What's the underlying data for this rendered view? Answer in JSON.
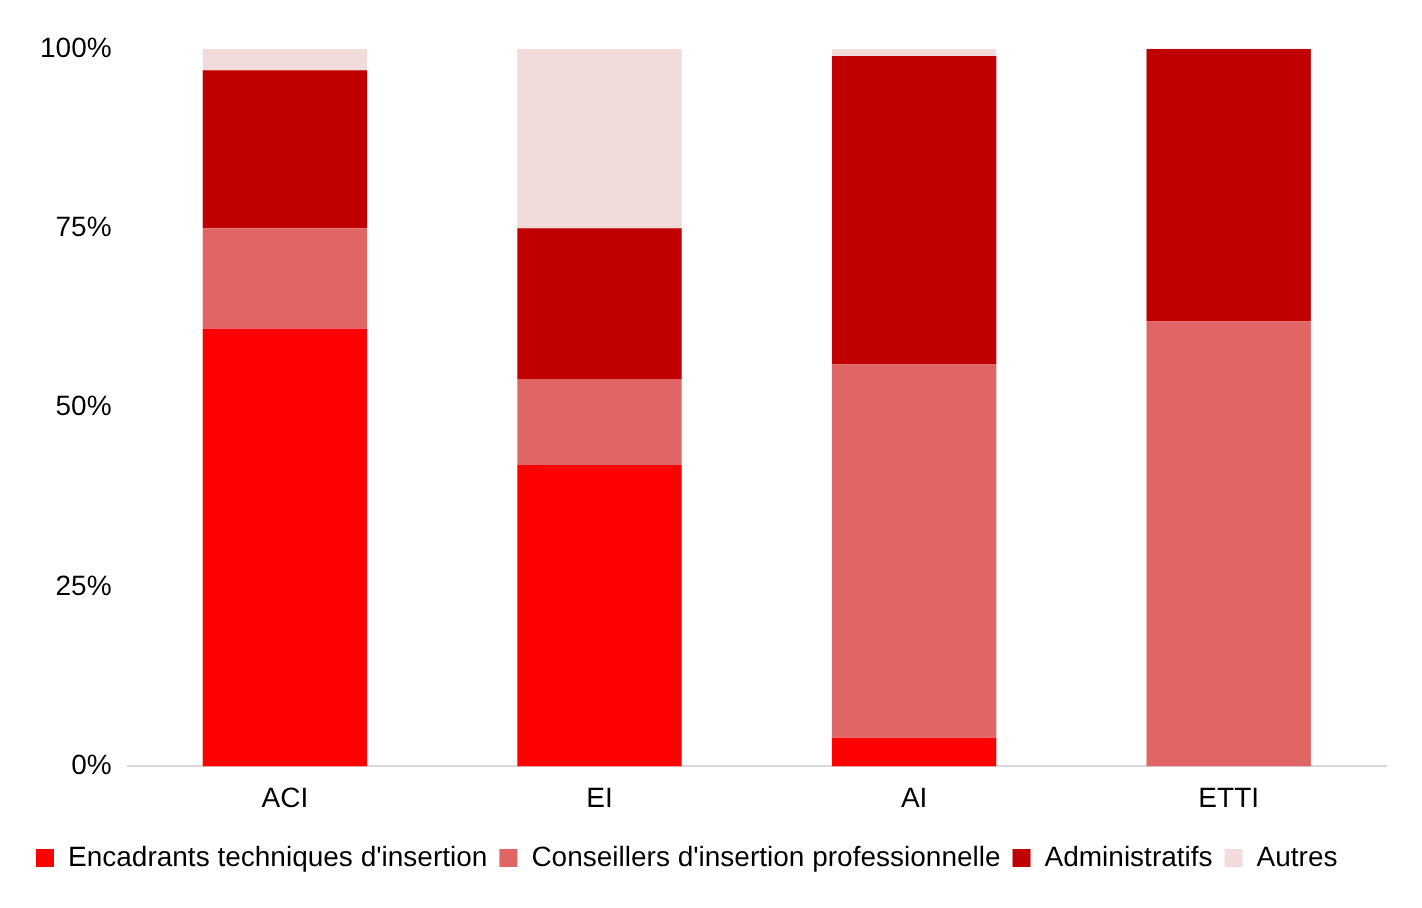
{
  "chart_data": {
    "type": "bar",
    "stacked": true,
    "categories": [
      "ACI",
      "EI",
      "AI",
      "ETTI"
    ],
    "series": [
      {
        "name": "Encadrants techniques d'insertion",
        "color": "#ff0000",
        "values": [
          61,
          42,
          4,
          0
        ]
      },
      {
        "name": "Conseillers d'insertion professionnelle",
        "color": "#e06666",
        "values": [
          14,
          12,
          52,
          62
        ]
      },
      {
        "name": "Administratifs",
        "color": "#c00000",
        "values": [
          22,
          21,
          43,
          38
        ]
      },
      {
        "name": "Autres",
        "color": "#f2dcdb",
        "values": [
          3,
          25,
          1,
          0
        ]
      }
    ],
    "ylim": [
      0,
      100
    ],
    "yticks": [
      {
        "value": 0,
        "label": "0%"
      },
      {
        "value": 25,
        "label": "25%"
      },
      {
        "value": 50,
        "label": "50%"
      },
      {
        "value": 75,
        "label": "75%"
      },
      {
        "value": 100,
        "label": "100%"
      }
    ],
    "grid": false,
    "legend": "bottom"
  }
}
